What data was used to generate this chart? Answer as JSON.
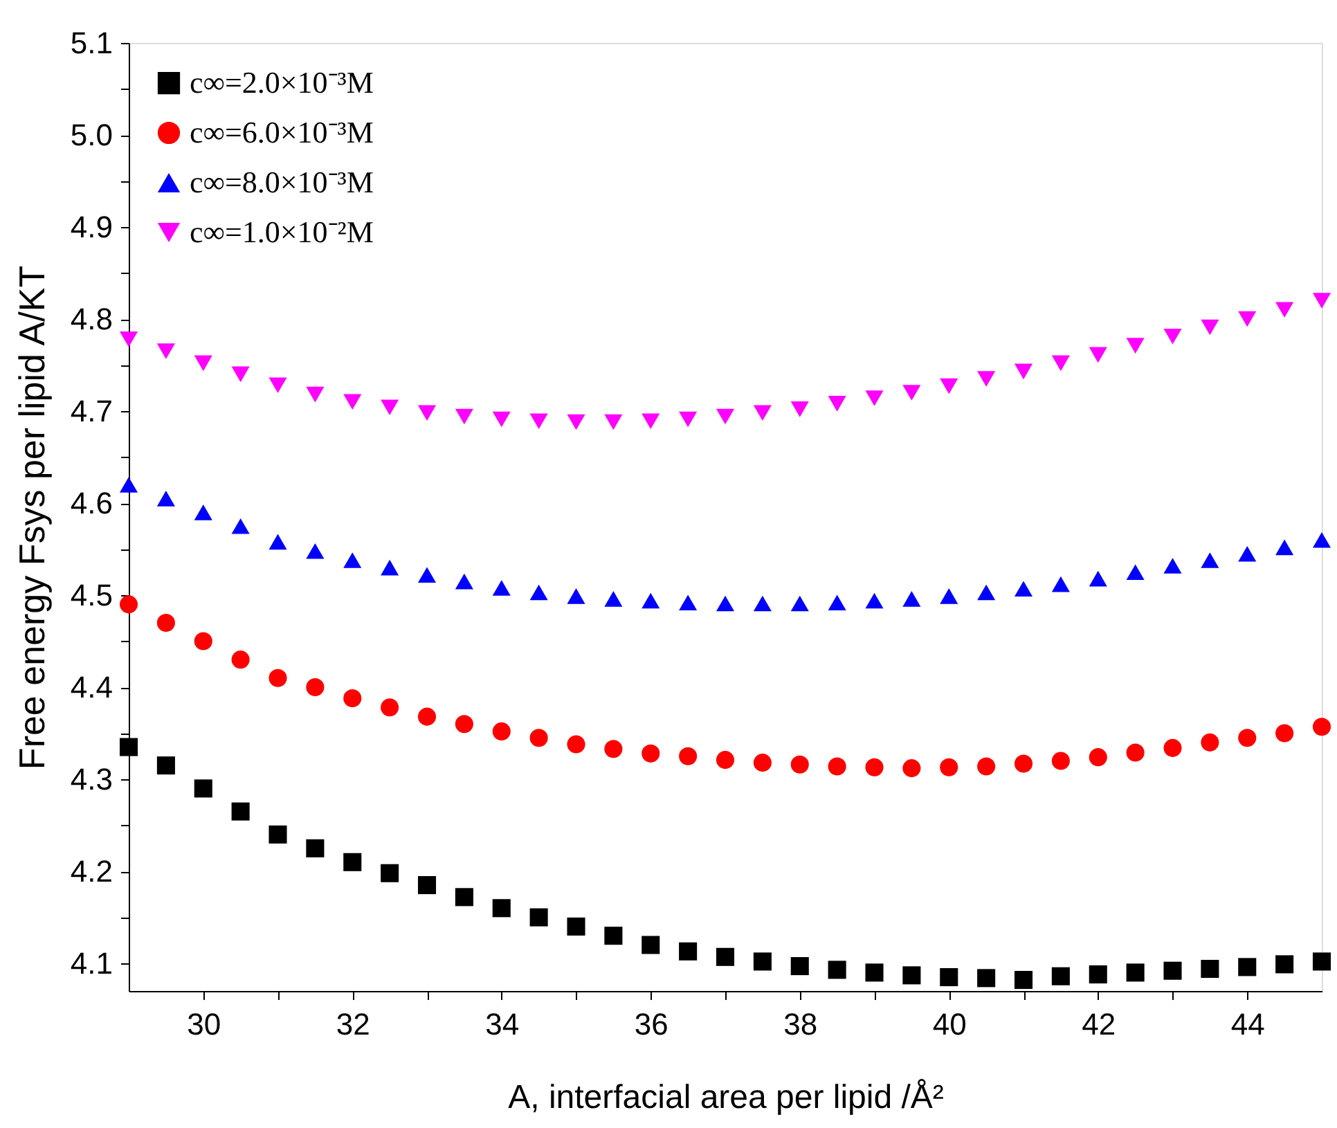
{
  "chart_data": {
    "type": "scatter",
    "xlabel": "A, interfacial area per lipid /Å²",
    "ylabel": "Free energy Fsys per lipid A/KT",
    "x": [
      29,
      29.5,
      30,
      30.5,
      31,
      31.5,
      32,
      32.5,
      33,
      33.5,
      34,
      34.5,
      35,
      35.5,
      36,
      36.5,
      37,
      37.5,
      38,
      38.5,
      39,
      39.5,
      40,
      40.5,
      41,
      41.5,
      42,
      42.5,
      43,
      43.5,
      44,
      44.5,
      45
    ],
    "series": [
      {
        "name": "c∞=2.0×10⁻³M",
        "color": "#000000",
        "marker": "square",
        "values": [
          4.335,
          4.315,
          4.29,
          4.265,
          4.24,
          4.225,
          4.21,
          4.198,
          4.185,
          4.172,
          4.16,
          4.15,
          4.14,
          4.13,
          4.12,
          4.113,
          4.107,
          4.102,
          4.097,
          4.093,
          4.09,
          4.087,
          4.085,
          4.084,
          4.082,
          4.086,
          4.088,
          4.09,
          4.092,
          4.094,
          4.096,
          4.099,
          4.102
        ]
      },
      {
        "name": "c∞=6.0×10⁻³M",
        "color": "#ff0000",
        "marker": "circle",
        "values": [
          4.49,
          4.47,
          4.45,
          4.43,
          4.41,
          4.4,
          4.388,
          4.378,
          4.368,
          4.36,
          4.352,
          4.345,
          4.338,
          4.333,
          4.328,
          4.325,
          4.321,
          4.318,
          4.316,
          4.314,
          4.313,
          4.312,
          4.313,
          4.314,
          4.317,
          4.32,
          4.324,
          4.329,
          4.334,
          4.34,
          4.345,
          4.35,
          4.357
        ]
      },
      {
        "name": "c∞=8.0×10⁻³M",
        "color": "#0000ff",
        "marker": "triangle",
        "values": [
          4.62,
          4.605,
          4.59,
          4.575,
          4.558,
          4.548,
          4.538,
          4.53,
          4.522,
          4.515,
          4.508,
          4.503,
          4.499,
          4.496,
          4.494,
          4.492,
          4.491,
          4.491,
          4.491,
          4.492,
          4.494,
          4.496,
          4.499,
          4.503,
          4.507,
          4.512,
          4.518,
          4.525,
          4.532,
          4.538,
          4.545,
          4.552,
          4.56
        ]
      },
      {
        "name": "c∞=1.0×10⁻²M",
        "color": "#ff00ff",
        "marker": "triangle-down",
        "values": [
          4.778,
          4.765,
          4.752,
          4.74,
          4.728,
          4.718,
          4.71,
          4.704,
          4.698,
          4.694,
          4.691,
          4.689,
          4.688,
          4.688,
          4.689,
          4.691,
          4.694,
          4.698,
          4.702,
          4.708,
          4.714,
          4.72,
          4.727,
          4.735,
          4.743,
          4.752,
          4.761,
          4.771,
          4.781,
          4.791,
          4.8,
          4.81,
          4.82
        ]
      }
    ],
    "xlim": [
      29,
      45
    ],
    "xticks": [
      30,
      {
        "value": 31,
        "label": null
      },
      32,
      {
        "value": 33,
        "label": null
      },
      34,
      {
        "value": 35,
        "label": null
      },
      36,
      {
        "value": 37,
        "label": null
      },
      38,
      {
        "value": 39,
        "label": null
      },
      40,
      {
        "value": 41,
        "label": null
      },
      42,
      {
        "value": 43,
        "label": null
      },
      44
    ],
    "ylim": [
      4.07,
      5.1
    ],
    "yticks": [
      {
        "value": 4.1,
        "label": "4.1"
      },
      {
        "value": 4.15,
        "label": null
      },
      4.2,
      {
        "value": 4.25,
        "label": null
      },
      4.3,
      {
        "value": 4.35,
        "label": null
      },
      4.4,
      {
        "value": 4.45,
        "label": null
      },
      4.5,
      {
        "value": 4.55,
        "label": null
      },
      4.6,
      {
        "value": 4.65,
        "label": null
      },
      4.7,
      {
        "value": 4.75,
        "label": null
      },
      4.8,
      {
        "value": 4.85,
        "label": null
      },
      4.9,
      {
        "value": 4.95,
        "label": null
      },
      {
        "value": 5,
        "label": "5.0"
      },
      {
        "value": 5.05,
        "label": null
      },
      5.1
    ],
    "grid": false,
    "legend": "top left"
  }
}
